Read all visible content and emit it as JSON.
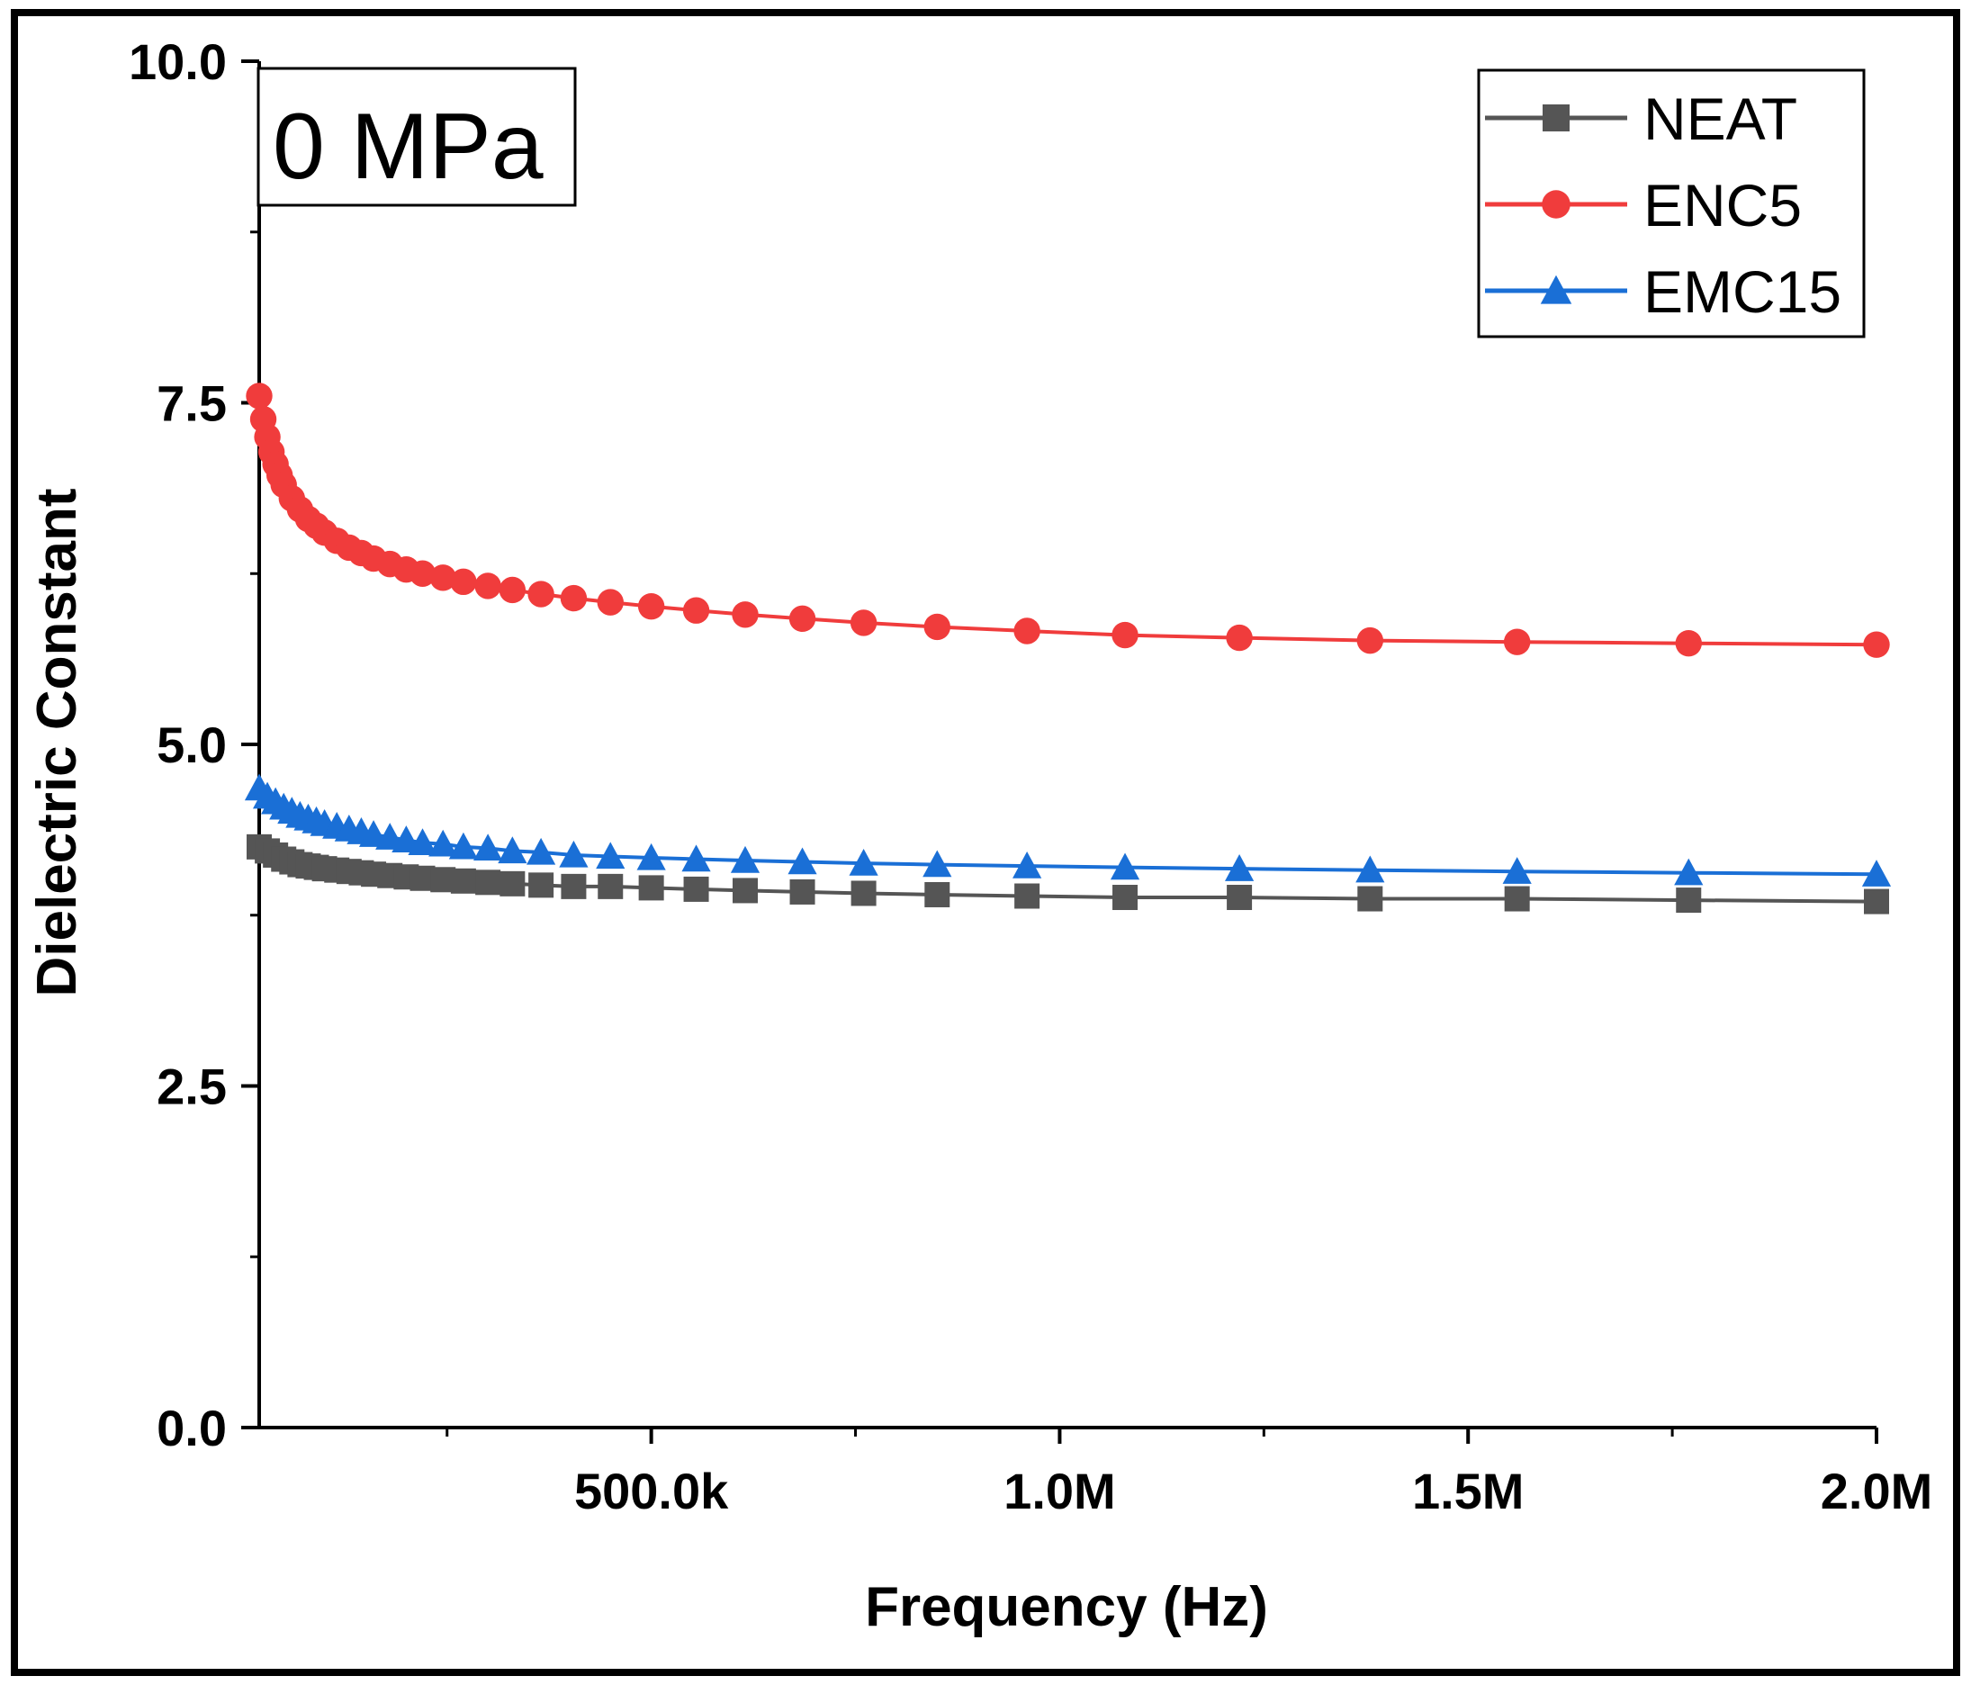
{
  "chart_data": {
    "type": "line",
    "title": "",
    "annotation": "0 MPa",
    "xlabel": "Frequency (Hz)",
    "ylabel": "Dielectric Constant",
    "xlim": [
      20000,
      2000000
    ],
    "ylim": [
      0,
      10
    ],
    "x_ticks": [
      {
        "value": 500000,
        "label": "500.0k"
      },
      {
        "value": 1000000,
        "label": "1.0M"
      },
      {
        "value": 1500000,
        "label": "1.5M"
      },
      {
        "value": 2000000,
        "label": "2.0M"
      }
    ],
    "y_ticks": [
      {
        "value": 0,
        "label": "0.0"
      },
      {
        "value": 2.5,
        "label": "2.5"
      },
      {
        "value": 5,
        "label": "5.0"
      },
      {
        "value": 7.5,
        "label": "7.5"
      },
      {
        "value": 10,
        "label": "10.0"
      }
    ],
    "grid": false,
    "legend_position": "top-right",
    "series": [
      {
        "name": "NEAT",
        "color": "#555555",
        "marker": "square",
        "x": [
          20000,
          30000,
          40000,
          50000,
          60000,
          70000,
          80000,
          90000,
          100000,
          115000,
          130000,
          145000,
          160000,
          180000,
          200000,
          220000,
          245000,
          270000,
          300000,
          330000,
          365000,
          405000,
          450000,
          500000,
          555000,
          615000,
          685000,
          760000,
          850000,
          960000,
          1080000,
          1220000,
          1380000,
          1560000,
          1770000,
          2000000
        ],
        "y": [
          4.25,
          4.22,
          4.19,
          4.16,
          4.14,
          4.12,
          4.11,
          4.1,
          4.09,
          4.08,
          4.07,
          4.06,
          4.05,
          4.04,
          4.03,
          4.02,
          4.01,
          4.0,
          3.99,
          3.98,
          3.97,
          3.96,
          3.96,
          3.95,
          3.94,
          3.93,
          3.92,
          3.91,
          3.9,
          3.89,
          3.88,
          3.88,
          3.87,
          3.87,
          3.86,
          3.85
        ]
      },
      {
        "name": "ENC5",
        "color": "#f03c3c",
        "marker": "circle",
        "x": [
          20000,
          25000,
          30000,
          35000,
          40000,
          45000,
          50000,
          60000,
          70000,
          80000,
          90000,
          100000,
          115000,
          130000,
          145000,
          160000,
          180000,
          200000,
          220000,
          245000,
          270000,
          300000,
          330000,
          365000,
          405000,
          450000,
          500000,
          555000,
          615000,
          685000,
          760000,
          850000,
          960000,
          1080000,
          1220000,
          1380000,
          1560000,
          1770000,
          2000000
        ],
        "y": [
          7.55,
          7.38,
          7.25,
          7.14,
          7.05,
          6.97,
          6.9,
          6.8,
          6.72,
          6.65,
          6.6,
          6.55,
          6.49,
          6.44,
          6.4,
          6.36,
          6.32,
          6.28,
          6.25,
          6.22,
          6.19,
          6.16,
          6.13,
          6.1,
          6.07,
          6.04,
          6.01,
          5.98,
          5.95,
          5.92,
          5.89,
          5.86,
          5.83,
          5.8,
          5.78,
          5.76,
          5.75,
          5.74,
          5.73
        ]
      },
      {
        "name": "EMC15",
        "color": "#1a6fd6",
        "marker": "triangle",
        "x": [
          20000,
          30000,
          40000,
          50000,
          60000,
          70000,
          80000,
          90000,
          100000,
          115000,
          130000,
          145000,
          160000,
          180000,
          200000,
          220000,
          245000,
          270000,
          300000,
          330000,
          365000,
          405000,
          450000,
          500000,
          555000,
          615000,
          685000,
          760000,
          850000,
          960000,
          1080000,
          1220000,
          1380000,
          1560000,
          1770000,
          2000000
        ],
        "y": [
          4.68,
          4.62,
          4.58,
          4.54,
          4.51,
          4.48,
          4.46,
          4.44,
          4.42,
          4.4,
          4.38,
          4.36,
          4.34,
          4.32,
          4.3,
          4.28,
          4.27,
          4.25,
          4.24,
          4.22,
          4.21,
          4.19,
          4.18,
          4.17,
          4.16,
          4.15,
          4.14,
          4.13,
          4.12,
          4.11,
          4.1,
          4.09,
          4.08,
          4.07,
          4.06,
          4.05
        ]
      }
    ]
  }
}
